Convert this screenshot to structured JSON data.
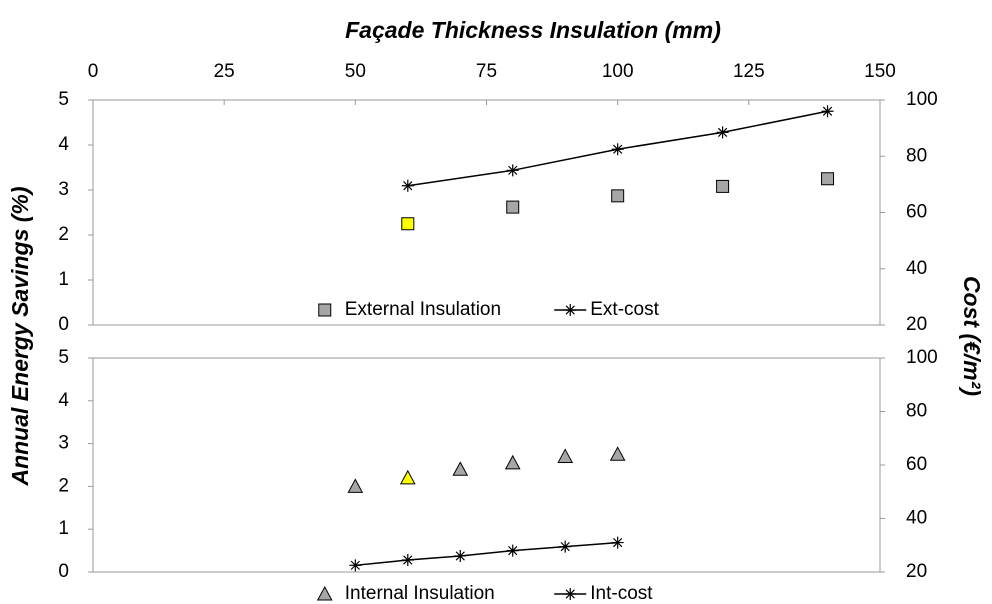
{
  "chart_data": [
    {
      "type": "scatter",
      "xlabel": "Façade Thickness Insulation (mm)",
      "ylabel": "Annual Energy Savings (%)",
      "y2label": "Cost (€/m²)",
      "xlim": [
        0,
        150
      ],
      "xticks": [
        0,
        25,
        50,
        75,
        100,
        125,
        150
      ],
      "ylim": [
        0,
        5
      ],
      "yticks": [
        0,
        1,
        2,
        3,
        4,
        5
      ],
      "y2lim": [
        20,
        100
      ],
      "y2ticks": [
        20,
        40,
        60,
        80,
        100
      ],
      "legend": "bottom",
      "series": [
        {
          "name": "External Insulation",
          "marker": "square",
          "line": false,
          "color": "#a6a6a6",
          "point_colors": [
            "#ffff00",
            "#a6a6a6",
            "#a6a6a6",
            "#a6a6a6",
            "#a6a6a6"
          ],
          "x": [
            60,
            80,
            100,
            120,
            140
          ],
          "values": [
            2.25,
            2.62,
            2.87,
            3.08,
            3.25
          ]
        },
        {
          "name": "Ext-cost",
          "marker": "star",
          "line": true,
          "color": "#000000",
          "axis": "y2",
          "x": [
            60,
            80,
            100,
            120,
            140
          ],
          "values": [
            69.5,
            75,
            82.5,
            88.5,
            96
          ]
        }
      ]
    },
    {
      "type": "scatter",
      "xlim": [
        0,
        150
      ],
      "ylim": [
        0,
        5
      ],
      "yticks": [
        0,
        1,
        2,
        3,
        4,
        5
      ],
      "y2lim": [
        20,
        100
      ],
      "y2ticks": [
        20,
        40,
        60,
        80,
        100
      ],
      "legend": "bottom",
      "series": [
        {
          "name": "Internal Insulation",
          "marker": "triangle",
          "line": false,
          "color": "#a6a6a6",
          "point_colors": [
            "#a6a6a6",
            "#ffff00",
            "#a6a6a6",
            "#a6a6a6",
            "#a6a6a6",
            "#a6a6a6"
          ],
          "x": [
            50,
            60,
            70,
            80,
            90,
            100
          ],
          "values": [
            2.0,
            2.2,
            2.4,
            2.55,
            2.7,
            2.75
          ]
        },
        {
          "name": "Int-cost",
          "marker": "star",
          "line": true,
          "color": "#000000",
          "axis": "y2",
          "x": [
            50,
            60,
            70,
            80,
            90,
            100
          ],
          "values": [
            22.5,
            24.5,
            26,
            28,
            29.5,
            31
          ]
        }
      ]
    }
  ]
}
